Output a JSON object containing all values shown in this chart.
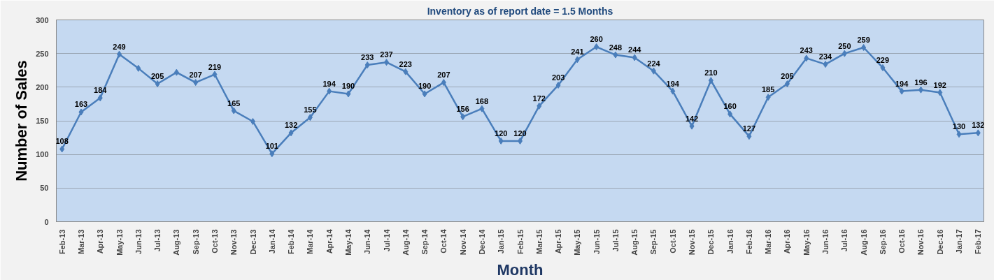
{
  "chart_data": {
    "type": "line",
    "title": "Inventory as of report date = 1.5 Months",
    "xlabel": "Month",
    "ylabel": "Number of Sales",
    "categories": [
      "Feb-13",
      "Mar-13",
      "Apr-13",
      "May-13",
      "Jun-13",
      "Jul-13",
      "Aug-13",
      "Sep-13",
      "Oct-13",
      "Nov-13",
      "Dec-13",
      "Jan-14",
      "Feb-14",
      "Mar-14",
      "Apr-14",
      "May-14",
      "Jun-14",
      "Jul-14",
      "Aug-14",
      "Sep-14",
      "Oct-14",
      "Nov-14",
      "Dec-14",
      "Jan-15",
      "Feb-15",
      "Mar-15",
      "Apr-15",
      "May-15",
      "Jun-15",
      "Jul-15",
      "Aug-15",
      "Sep-15",
      "Oct-15",
      "Nov-15",
      "Dec-15",
      "Jan-16",
      "Feb-16",
      "Mar-16",
      "Apr-16",
      "May-16",
      "Jun-16",
      "Jul-16",
      "Aug-16",
      "Sep-16",
      "Oct-16",
      "Nov-16",
      "Dec-16",
      "Jan-17",
      "Feb-17"
    ],
    "series": [
      {
        "color": "#4a7ebb",
        "values": [
          108,
          163,
          184,
          249,
          228,
          205,
          222,
          207,
          219,
          165,
          149,
          101,
          132,
          155,
          194,
          190,
          233,
          237,
          223,
          190,
          207,
          156,
          168,
          120,
          120,
          172,
          203,
          241,
          260,
          248,
          244,
          224,
          194,
          142,
          210,
          160,
          127,
          185,
          205,
          243,
          234,
          250,
          259,
          229,
          194,
          196,
          192,
          130,
          132
        ],
        "value_labels": [
          "108",
          "163",
          "184",
          "249",
          null,
          "205",
          null,
          "207",
          "219",
          "165",
          null,
          "101",
          "132",
          "155",
          "194",
          "190",
          "233",
          "237",
          "223",
          "190",
          "207",
          "156",
          "168",
          "120",
          "120",
          "172",
          "203",
          "241",
          "260",
          "248",
          "244",
          "224",
          "194",
          "142",
          "210",
          "160",
          "127",
          "185",
          "205",
          "243",
          "234",
          "250",
          "259",
          "229",
          "194",
          "196",
          "192",
          "130",
          "132"
        ]
      }
    ],
    "ylim": [
      0,
      300
    ],
    "yticks": [
      0,
      50,
      100,
      150,
      200,
      250,
      300
    ],
    "grid": "y",
    "marker": "diamond",
    "line_style": "solid"
  }
}
